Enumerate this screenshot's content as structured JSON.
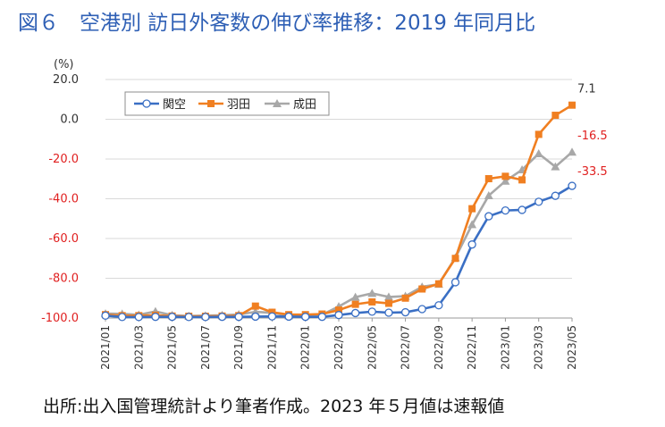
{
  "chart_data": {
    "type": "line",
    "title": "図６　空港別  訪日外客数の伸び率推移：2019 年同月比",
    "ylabel": "(%)",
    "source": "出所:出入国管理統計より筆者作成。2023 年５月値は速報値",
    "ylim": [
      -100,
      20
    ],
    "yticks": [
      20,
      0,
      -20,
      -40,
      -60,
      -80,
      -100
    ],
    "ytick_labels": [
      "20.0",
      "0.0",
      "-20.0",
      "-40.0",
      "-60.0",
      "-80.0",
      "-100.0"
    ],
    "grid": true,
    "legend": "top-left",
    "x": [
      "2021/01",
      "2021/02",
      "2021/03",
      "2021/04",
      "2021/05",
      "2021/06",
      "2021/07",
      "2021/08",
      "2021/09",
      "2021/10",
      "2021/11",
      "2021/12",
      "2022/01",
      "2022/02",
      "2022/03",
      "2022/04",
      "2022/05",
      "2022/06",
      "2022/07",
      "2022/08",
      "2022/09",
      "2022/10",
      "2022/11",
      "2022/12",
      "2023/01",
      "2023/02",
      "2023/03",
      "2023/04",
      "2023/05"
    ],
    "xtick_labels": [
      "2021/01",
      "2021/03",
      "2021/05",
      "2021/07",
      "2021/09",
      "2021/11",
      "2022/01",
      "2022/03",
      "2022/05",
      "2022/07",
      "2022/09",
      "2022/11",
      "2023/01",
      "2023/03",
      "2023/05"
    ],
    "series": [
      {
        "name": "関空",
        "color": "#3a6fc4",
        "marker": "circle",
        "values": [
          -98.8,
          -99.5,
          -99.5,
          -99.4,
          -99.4,
          -99.5,
          -99.5,
          -99.4,
          -99.4,
          -99.3,
          -99.2,
          -99.3,
          -99.4,
          -99.4,
          -98.5,
          -97.5,
          -96.8,
          -97.3,
          -97.1,
          -95.5,
          -93.6,
          -82.0,
          -63.0,
          -48.8,
          -45.9,
          -45.6,
          -41.5,
          -38.5,
          -33.5
        ]
      },
      {
        "name": "羽田",
        "color": "#f07f21",
        "marker": "square",
        "values": [
          -98.3,
          -98.8,
          -98.8,
          -98.6,
          -99.0,
          -99.1,
          -99.1,
          -99.0,
          -98.8,
          -94.0,
          -97.1,
          -98.3,
          -98.3,
          -98.0,
          -96.0,
          -93.1,
          -91.9,
          -92.6,
          -90.0,
          -85.4,
          -82.8,
          -70.0,
          -45.0,
          -29.9,
          -28.7,
          -30.5,
          -7.6,
          2.0,
          7.1
        ]
      },
      {
        "name": "成田",
        "color": "#a8a8a8",
        "marker": "triangle",
        "values": [
          -97.8,
          -97.9,
          -98.4,
          -96.7,
          -98.6,
          -99.0,
          -98.8,
          -98.6,
          -98.2,
          -96.9,
          -97.4,
          -98.8,
          -98.7,
          -98.4,
          -94.2,
          -89.5,
          -87.6,
          -89.4,
          -89.0,
          -84.3,
          -83.0,
          -69.6,
          -53.0,
          -38.4,
          -31.1,
          -25.4,
          -17.3,
          -23.9,
          -16.5
        ]
      }
    ],
    "end_labels": [
      {
        "series": 1,
        "text": "7.1",
        "color": "#333333"
      },
      {
        "series": 2,
        "text": "-16.5",
        "color": "#e02020"
      },
      {
        "series": 0,
        "text": "-33.5",
        "color": "#e02020"
      }
    ]
  }
}
